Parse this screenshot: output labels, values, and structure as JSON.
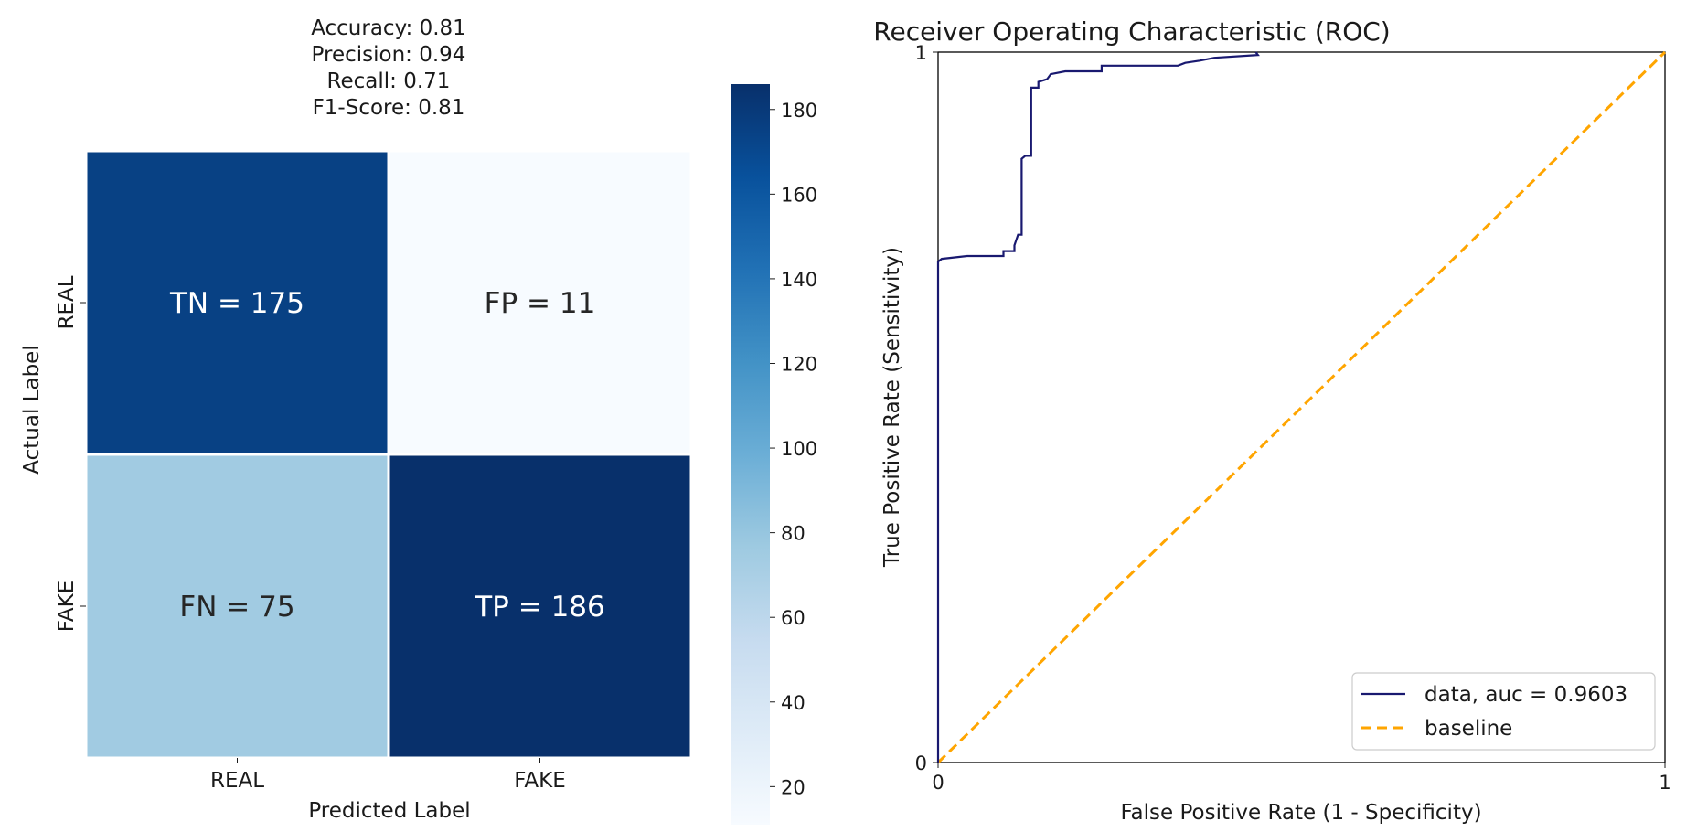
{
  "chart_data": [
    {
      "type": "heatmap",
      "title_lines": [
        "Accuracy: 0.81",
        "Precision: 0.94",
        "Recall: 0.71",
        "F1-Score: 0.81"
      ],
      "xlabel": "Predicted Label",
      "ylabel": "Actual Label",
      "x_categories": [
        "REAL",
        "FAKE"
      ],
      "y_categories": [
        "REAL",
        "FAKE"
      ],
      "cells": [
        {
          "row": 0,
          "col": 0,
          "label": "TN = 175",
          "value": 175
        },
        {
          "row": 0,
          "col": 1,
          "label": "FP = 11",
          "value": 11
        },
        {
          "row": 1,
          "col": 0,
          "label": "FN = 75",
          "value": 75
        },
        {
          "row": 1,
          "col": 1,
          "label": "TP = 186",
          "value": 186
        }
      ],
      "colormap": "Blues",
      "colorbar": {
        "range": [
          11,
          186
        ],
        "ticks": [
          20,
          40,
          60,
          80,
          100,
          120,
          140,
          160,
          180
        ]
      }
    },
    {
      "type": "line",
      "title": "Receiver Operating Characteristic (ROC)",
      "xlabel": "False Positive Rate (1 - Specificity)",
      "ylabel": "True Positive Rate (Sensitivity)",
      "xlim": [
        0,
        1
      ],
      "ylim": [
        0,
        1
      ],
      "xticks": [
        "0",
        "1"
      ],
      "yticks": [
        "0",
        "1"
      ],
      "legend_position": "lower-right",
      "series": [
        {
          "name": "data, auc = 0.9603",
          "color": "#191970",
          "style": "step",
          "points": [
            [
              0.0,
              0.0
            ],
            [
              0.0,
              0.705
            ],
            [
              0.005,
              0.709
            ],
            [
              0.04,
              0.713
            ],
            [
              0.09,
              0.713
            ],
            [
              0.09,
              0.72
            ],
            [
              0.105,
              0.72
            ],
            [
              0.105,
              0.728
            ],
            [
              0.11,
              0.743
            ],
            [
              0.115,
              0.743
            ],
            [
              0.115,
              0.85
            ],
            [
              0.12,
              0.854
            ],
            [
              0.128,
              0.854
            ],
            [
              0.128,
              0.95
            ],
            [
              0.138,
              0.95
            ],
            [
              0.138,
              0.958
            ],
            [
              0.15,
              0.962
            ],
            [
              0.155,
              0.969
            ],
            [
              0.175,
              0.973
            ],
            [
              0.225,
              0.973
            ],
            [
              0.225,
              0.981
            ],
            [
              0.33,
              0.981
            ],
            [
              0.34,
              0.985
            ],
            [
              0.36,
              0.988
            ],
            [
              0.38,
              0.992
            ],
            [
              0.44,
              0.996
            ],
            [
              0.437,
              1.0
            ],
            [
              0.437,
              1.0
            ]
          ]
        },
        {
          "name": "baseline",
          "color": "#FFA500",
          "style": "dashed",
          "points": [
            [
              0,
              0
            ],
            [
              1,
              1
            ]
          ]
        }
      ]
    }
  ]
}
